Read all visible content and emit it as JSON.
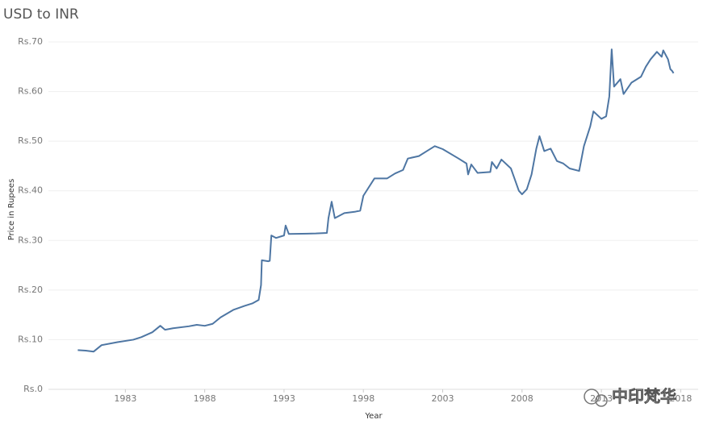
{
  "chart_data": {
    "type": "line",
    "title": "USD to INR",
    "x_label": "Year",
    "y_label": "Price in Rupees",
    "watermark": "中印梵华",
    "x": [
      1980.0,
      1980.5,
      1981.0,
      1981.5,
      1982.5,
      1983.5,
      1984.0,
      1984.7,
      1985.2,
      1985.5,
      1986.0,
      1987.0,
      1987.5,
      1988.0,
      1988.5,
      1989.0,
      1989.8,
      1990.5,
      1991.0,
      1991.4,
      1991.55,
      1991.6,
      1992.0,
      1992.1,
      1992.2,
      1992.5,
      1993.0,
      1993.1,
      1993.3,
      1995.0,
      1995.7,
      1995.8,
      1996.0,
      1996.2,
      1996.8,
      1997.5,
      1997.8,
      1998.0,
      1998.3,
      1998.7,
      1999.5,
      2000.0,
      2000.5,
      2000.8,
      2001.5,
      2002.0,
      2002.5,
      2003.0,
      2004.0,
      2004.5,
      2004.6,
      2004.8,
      2005.2,
      2006.0,
      2006.1,
      2006.4,
      2006.7,
      2007.3,
      2007.8,
      2008.0,
      2008.3,
      2008.6,
      2008.9,
      2009.1,
      2009.4,
      2009.8,
      2010.2,
      2010.6,
      2011.0,
      2011.6,
      2011.9,
      2012.3,
      2012.5,
      2013.0,
      2013.3,
      2013.5,
      2013.65,
      2013.8,
      2014.2,
      2014.4,
      2014.9,
      2015.5,
      2015.8,
      2016.1,
      2016.5,
      2016.8,
      2016.9,
      2017.2,
      2017.35,
      2017.45,
      2017.55
    ],
    "series": [
      {
        "name": "USD to INR",
        "color": "#4e76a3",
        "values": [
          7.9,
          7.8,
          7.6,
          8.9,
          9.5,
          10.0,
          10.5,
          11.5,
          12.8,
          12.0,
          12.3,
          12.7,
          13.0,
          12.8,
          13.2,
          14.5,
          16.0,
          16.8,
          17.3,
          18.0,
          21.0,
          26.0,
          25.8,
          25.9,
          31.0,
          30.5,
          31.0,
          33.0,
          31.3,
          31.4,
          31.5,
          34.5,
          37.8,
          34.5,
          35.5,
          35.8,
          36.0,
          39.0,
          40.5,
          42.5,
          42.5,
          43.5,
          44.2,
          46.5,
          47.0,
          48.0,
          49.0,
          48.4,
          46.5,
          45.5,
          43.3,
          45.3,
          43.6,
          43.8,
          45.8,
          44.5,
          46.3,
          44.5,
          40.0,
          39.3,
          40.3,
          43.3,
          48.5,
          51.0,
          48.0,
          48.5,
          46.0,
          45.5,
          44.5,
          44.0,
          49.0,
          53.0,
          56.0,
          54.5,
          55.0,
          59.0,
          68.5,
          61.0,
          62.5,
          59.5,
          61.8,
          63.0,
          65.0,
          66.5,
          68.0,
          67.0,
          68.3,
          66.5,
          64.5,
          64.2,
          63.7
        ]
      }
    ],
    "xlim": [
      1978.15,
      2019.1
    ],
    "xticks": [
      1983,
      1988,
      1993,
      1998,
      2003,
      2008,
      2013,
      2018
    ],
    "ylim": [
      0,
      71.3
    ],
    "yticks": [
      {
        "value": 0,
        "label": "Rs.0"
      },
      {
        "value": 10,
        "label": "Rs.10"
      },
      {
        "value": 20,
        "label": "Rs.20"
      },
      {
        "value": 30,
        "label": "Rs.30"
      },
      {
        "value": 40,
        "label": "Rs.40"
      },
      {
        "value": 50,
        "label": "Rs.50"
      },
      {
        "value": 60,
        "label": "Rs.60"
      },
      {
        "value": 70,
        "label": "Rs.70"
      }
    ],
    "grid": true
  }
}
